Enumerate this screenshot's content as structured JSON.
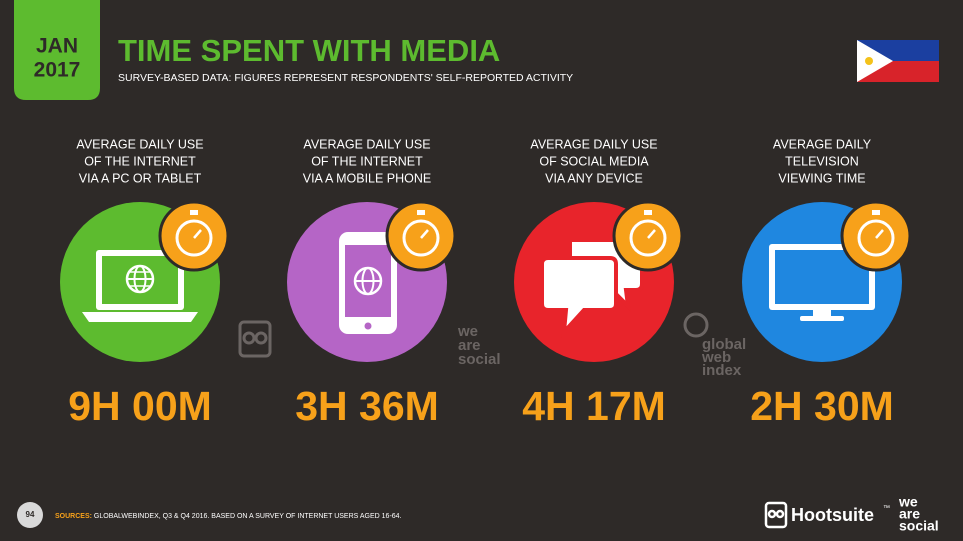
{
  "header": {
    "month": "JAN",
    "year": "2017",
    "title": "TIME SPENT WITH MEDIA",
    "subtitle": "SURVEY-BASED DATA: FIGURES REPRESENT RESPONDENTS' SELF-REPORTED ACTIVITY"
  },
  "panels": [
    {
      "label_lines": [
        "AVERAGE DAILY USE",
        "OF THE INTERNET",
        "VIA A PC OR TABLET"
      ],
      "value": "9H 00M"
    },
    {
      "label_lines": [
        "AVERAGE DAILY USE",
        "OF THE INTERNET",
        "VIA A MOBILE PHONE"
      ],
      "value": "3H 36M"
    },
    {
      "label_lines": [
        "AVERAGE DAILY USE",
        "OF SOCIAL MEDIA",
        "VIA ANY DEVICE"
      ],
      "value": "4H 17M"
    },
    {
      "label_lines": [
        "AVERAGE DAILY",
        "TELEVISION",
        "VIEWING TIME"
      ],
      "value": "2H 30M"
    }
  ],
  "watermarks": {
    "we_are_social": [
      "we",
      "are",
      "social"
    ],
    "globalwebindex": [
      "global",
      "web",
      "index"
    ]
  },
  "footer": {
    "page_number": "94",
    "sources_label": "SOURCES:",
    "sources_text": "GLOBALWEBINDEX, Q3 & Q4 2016. BASED ON A SURVEY OF INTERNET USERS AGED 16-64.",
    "hootsuite": "Hootsuite",
    "trademark": "™",
    "we_are_social": [
      "we",
      "are",
      "social"
    ]
  }
}
